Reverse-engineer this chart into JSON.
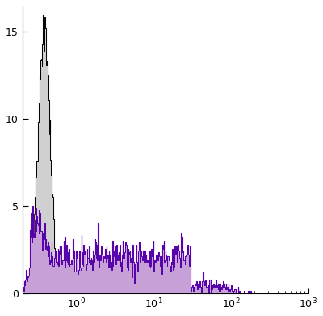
{
  "xlim": [
    0.2,
    1000
  ],
  "ylim": [
    0,
    16.5
  ],
  "yticks": [
    0,
    5,
    10,
    15
  ],
  "bg_color": "#ffffff",
  "gray_fill": "#d0d0d0",
  "gray_edge": "#000000",
  "purple_fill": "#c8a0d8",
  "purple_edge": "#5500aa",
  "seed": 123,
  "n_bins": 500,
  "figsize": [
    4.0,
    3.91
  ],
  "dpi": 100
}
